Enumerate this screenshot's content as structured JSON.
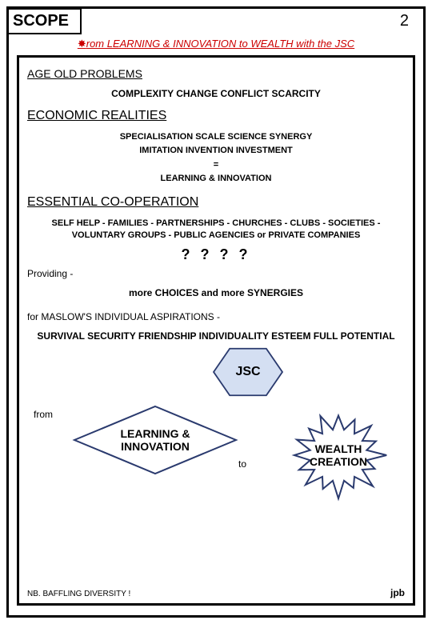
{
  "header": {
    "scope_label": "SCOPE",
    "page_number": "2",
    "subtitle_prefix_bullet": "✸",
    "subtitle_text": "rom LEARNING & INNOVATION to WEALTH with the JSC"
  },
  "sections": {
    "age_old": {
      "heading": "AGE OLD PROBLEMS",
      "line": "COMPLEXITY   CHANGE   CONFLICT   SCARCITY"
    },
    "economic": {
      "heading": "ECONOMIC REALITIES",
      "line1": "SPECIALISATION   SCALE   SCIENCE   SYNERGY",
      "line2": "IMITATION   INVENTION   INVESTMENT",
      "line3": "=",
      "line4": "LEARNING & INNOVATION"
    },
    "essential": {
      "heading": "ESSENTIAL CO-OPERATION",
      "line1": "SELF HELP - FAMILIES - PARTNERSHIPS - CHURCHES - CLUBS - SOCIETIES - VOLUNTARY GROUPS - PUBLIC AGENCIES or PRIVATE COMPANIES",
      "qmarks": "? ? ? ?",
      "providing": "Providing -",
      "choices": "more CHOICES and more SYNERGIES",
      "maslow": "for MASLOW'S INDIVIDUAL ASPIRATIONS -",
      "survival": "SURVIVAL   SECURITY   FRIENDSHIP   INDIVIDUALITY   ESTEEM   FULL POTENTIAL"
    }
  },
  "diagram": {
    "hex_label": "JSC",
    "from_label": "from",
    "diamond_label": "LEARNING & INNOVATION",
    "to_label": "to",
    "star_label": "WEALTH CREATION",
    "hex_fill": "#d4dff2",
    "hex_stroke": "#2a3a6e",
    "diamond_fill": "#ffffff",
    "diamond_stroke": "#2a3a6e",
    "star_fill": "#ffffff",
    "star_stroke": "#2a3a6e"
  },
  "footer": {
    "note": "NB.  BAFFLING DIVERSITY !",
    "signature": "jpb"
  }
}
